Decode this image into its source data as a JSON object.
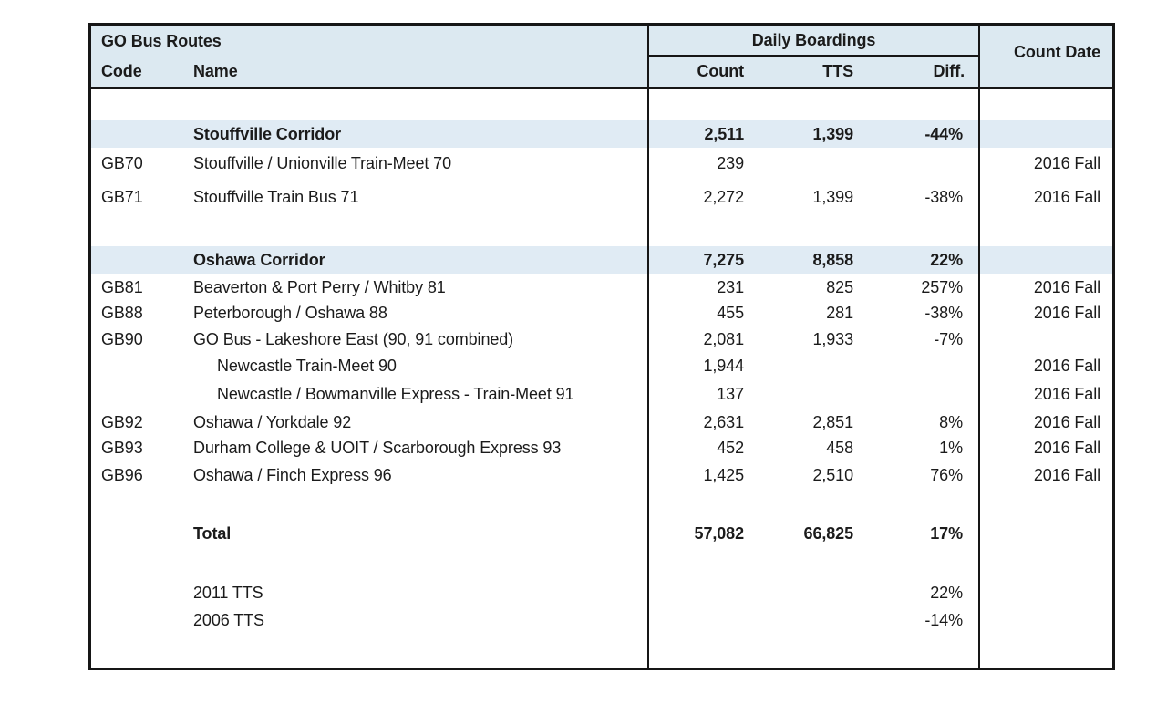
{
  "table": {
    "header": {
      "group_title": "GO Bus Routes",
      "code_label": "Code",
      "name_label": "Name",
      "boardings_title": "Daily Boardings",
      "count_label": "Count",
      "tts_label": "TTS",
      "diff_label": "Diff.",
      "count_date_label": "Count Date"
    },
    "colors": {
      "header_bg": "#dce9f1",
      "section_bg": "#e0ebf4",
      "border": "#161616"
    },
    "rows": [
      {
        "type": "blank"
      },
      {
        "type": "section",
        "name": "Stouffville Corridor",
        "count": "2,511",
        "tts": "1,399",
        "diff": "-44%"
      },
      {
        "type": "route",
        "code": "GB70",
        "name": "Stouffville / Unionville Train-Meet 70",
        "count": "239",
        "date": "2016 Fall"
      },
      {
        "type": "route",
        "code": "GB71",
        "name": "Stouffville Train Bus 71",
        "count": "2,272",
        "tts": "1,399",
        "diff": "-38%",
        "date": "2016 Fall"
      },
      {
        "type": "blank"
      },
      {
        "type": "section",
        "name": "Oshawa Corridor",
        "count": "7,275",
        "tts": "8,858",
        "diff": "22%"
      },
      {
        "type": "route",
        "code": "GB81",
        "name": "Beaverton & Port Perry / Whitby 81",
        "count": "231",
        "tts": "825",
        "diff": "257%",
        "date": "2016 Fall"
      },
      {
        "type": "route",
        "code": "GB88",
        "name": "Peterborough / Oshawa 88",
        "count": "455",
        "tts": "281",
        "diff": "-38%",
        "date": "2016 Fall"
      },
      {
        "type": "route",
        "code": "GB90",
        "name": "GO Bus - Lakeshore East (90, 91 combined)",
        "count": "2,081",
        "tts": "1,933",
        "diff": "-7%"
      },
      {
        "type": "subroute",
        "name": "Newcastle Train-Meet 90",
        "count": "1,944",
        "date": "2016 Fall"
      },
      {
        "type": "subroute",
        "name": "Newcastle / Bowmanville Express - Train-Meet 91",
        "count": "137",
        "date": "2016 Fall"
      },
      {
        "type": "route",
        "code": "GB92",
        "name": "Oshawa / Yorkdale 92",
        "count": "2,631",
        "tts": "2,851",
        "diff": "8%",
        "date": "2016 Fall"
      },
      {
        "type": "route",
        "code": "GB93",
        "name": "Durham College & UOIT / Scarborough Express 93",
        "count": "452",
        "tts": "458",
        "diff": "1%",
        "date": "2016 Fall"
      },
      {
        "type": "route",
        "code": "GB96",
        "name": "Oshawa / Finch Express 96",
        "count": "1,425",
        "tts": "2,510",
        "diff": "76%",
        "date": "2016 Fall"
      },
      {
        "type": "blank"
      },
      {
        "type": "total",
        "name": "Total",
        "count": "57,082",
        "tts": "66,825",
        "diff": "17%"
      },
      {
        "type": "blank"
      },
      {
        "type": "note",
        "name": "2011 TTS",
        "diff": "22%"
      },
      {
        "type": "note",
        "name": "2006 TTS",
        "diff": "-14%"
      },
      {
        "type": "blank"
      }
    ]
  }
}
